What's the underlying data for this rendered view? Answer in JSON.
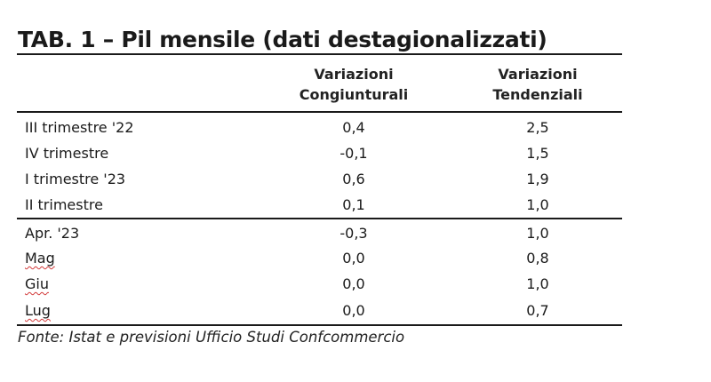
{
  "title": "TAB. 1 – Pil mensile (dati destagionalizzati)",
  "columns": [
    {
      "line1": "Variazioni",
      "line2": "Congiunturali"
    },
    {
      "line1": "Variazioni",
      "line2": "Tendenziali"
    }
  ],
  "rows": [
    {
      "label": "III trimestre '22",
      "v1": "0,4",
      "v2": "2,5"
    },
    {
      "label": "IV trimestre",
      "v1": "-0,1",
      "v2": "1,5"
    },
    {
      "label": "I trimestre '23",
      "v1": "0,6",
      "v2": "1,9"
    },
    {
      "label": "II trimestre",
      "v1": "0,1",
      "v2": "1,0"
    },
    {
      "label": "Apr. '23",
      "v1": "-0,3",
      "v2": "1,0"
    },
    {
      "label": "Mag",
      "v1": "0,0",
      "v2": "0,8"
    },
    {
      "label": "Giu",
      "v1": "0,0",
      "v2": "1,0"
    },
    {
      "label": "Lug",
      "v1": "0,0",
      "v2": "0,7"
    }
  ],
  "source": "Fonte: Istat e previsioni Ufficio  Studi Confcommercio"
}
